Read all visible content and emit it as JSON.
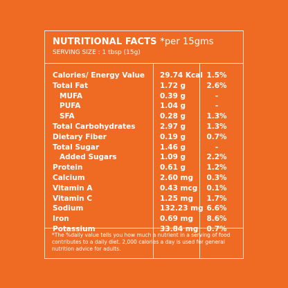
{
  "header": {
    "title": "NUTRITIONAL FACTS",
    "title_suffix": "*per 15gms",
    "serving": "SERVING SIZE : 1 tbsp (15g)"
  },
  "nutrients": [
    {
      "name": "Calories/ Energy Value",
      "amount": "29.74 Kcal",
      "dv": "1.5%"
    },
    {
      "name": "Total Fat",
      "amount": "1.72 g",
      "dv": "2.6%"
    },
    {
      "name": "MUFA",
      "amount": "0.39 g",
      "dv": "-"
    },
    {
      "name": "PUFA",
      "amount": "1.04 g",
      "dv": "-"
    },
    {
      "name": "SFA",
      "amount": "0.28 g",
      "dv": "1.3%"
    },
    {
      "name": "Total Carbohydrates",
      "amount": "2.97 g",
      "dv": "1.3%"
    },
    {
      "name": "Dietary Fiber",
      "amount": "0.19 g",
      "dv": "0.7%"
    },
    {
      "name": "Total Sugar",
      "amount": "1.46 g",
      "dv": "-"
    },
    {
      "name": "Added Sugars",
      "amount": "1.09 g",
      "dv": "2.2%"
    },
    {
      "name": "Protein",
      "amount": "0.61 g",
      "dv": "1.2%"
    },
    {
      "name": "Calcium",
      "amount": "2.60 mg",
      "dv": "0.3%"
    },
    {
      "name": "Vitamin A",
      "amount": "0.43 mcg",
      "dv": "0.1%"
    },
    {
      "name": "Vitamin C",
      "amount": "1.25 mg",
      "dv": "1.7%"
    },
    {
      "name": "Sodium",
      "amount": "132.23 mg",
      "dv": "6.6%"
    },
    {
      "name": "Iron",
      "amount": "0.69 mg",
      "dv": "8.6%"
    },
    {
      "name": "Potassium",
      "amount": "33.84 mg",
      "dv": "0.7%"
    }
  ],
  "footnote": "*The %daily value tells you how much a nutrient in a serving of food contributes to a daily diet. 2,000 calories a day is used for general nutrition advice for adults.",
  "colors": {
    "background": "#EF6A22",
    "text": "#FFFFFF"
  }
}
